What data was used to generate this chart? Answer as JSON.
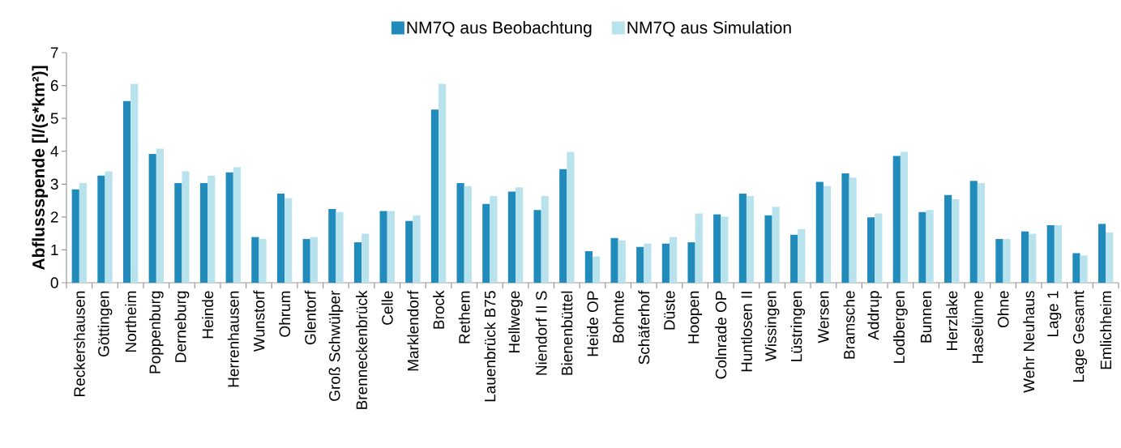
{
  "chart_data": {
    "type": "bar",
    "ylabel": "Abflussspende [l/(s*km²)]",
    "categories": [
      "Reckershausen",
      "Göttingen",
      "Northeim",
      "Poppenburg",
      "Derneburg",
      "Heinde",
      "Herrenhausen",
      "Wunstorf",
      "Ohrum",
      "Glentorf",
      "Groß Schwülper",
      "Brenneckenbrück",
      "Celle",
      "Marklendorf",
      "Brock",
      "Rethem",
      "Lauenbrück B75",
      "Hellwege",
      "Niendorf II S",
      "Bienenbüttel",
      "Heide OP",
      "Bohmte",
      "Schäferhof",
      "Düste",
      "Hoopen",
      "Colnrade OP",
      "Huntlosen II",
      "Wissingen",
      "Lüstringen",
      "Wersen",
      "Bramsche",
      "Addrup",
      "Lodbergen",
      "Bunnen",
      "Herzlake",
      "Haselünne",
      "Ohne",
      "Wehr Neuhaus",
      "Lage 1",
      "Lage Gesamt",
      "Emlichheim"
    ],
    "series": [
      {
        "name": "NM7Q aus Beobachtung",
        "color": "#218bbb",
        "values": [
          2.84,
          3.26,
          5.53,
          3.92,
          3.03,
          3.03,
          3.36,
          1.39,
          2.71,
          1.33,
          2.24,
          1.23,
          2.18,
          1.88,
          5.27,
          3.03,
          2.4,
          2.77,
          2.21,
          3.46,
          0.96,
          1.36,
          1.09,
          1.19,
          1.23,
          2.08,
          2.71,
          2.05,
          1.46,
          3.07,
          3.33,
          1.99,
          3.86,
          2.15,
          2.67,
          3.1,
          1.33,
          1.56,
          1.75,
          0.9,
          1.79
        ]
      },
      {
        "name": "NM7Q aus Simulation",
        "color": "#b9e3ec",
        "values": [
          3.03,
          3.39,
          6.05,
          4.08,
          3.39,
          3.26,
          3.52,
          1.33,
          2.57,
          1.39,
          2.15,
          1.49,
          2.18,
          2.05,
          6.05,
          2.94,
          2.64,
          2.9,
          2.64,
          3.98,
          0.8,
          1.29,
          1.19,
          1.39,
          2.11,
          2.01,
          2.64,
          2.31,
          1.63,
          2.94,
          3.2,
          2.11,
          3.98,
          2.21,
          2.54,
          3.03,
          1.33,
          1.49,
          1.75,
          0.83,
          1.53
        ]
      }
    ],
    "ylim": [
      0,
      7
    ],
    "yticks": [
      0,
      1,
      2,
      3,
      4,
      5,
      6,
      7
    ],
    "grid": false,
    "legend": "top"
  }
}
